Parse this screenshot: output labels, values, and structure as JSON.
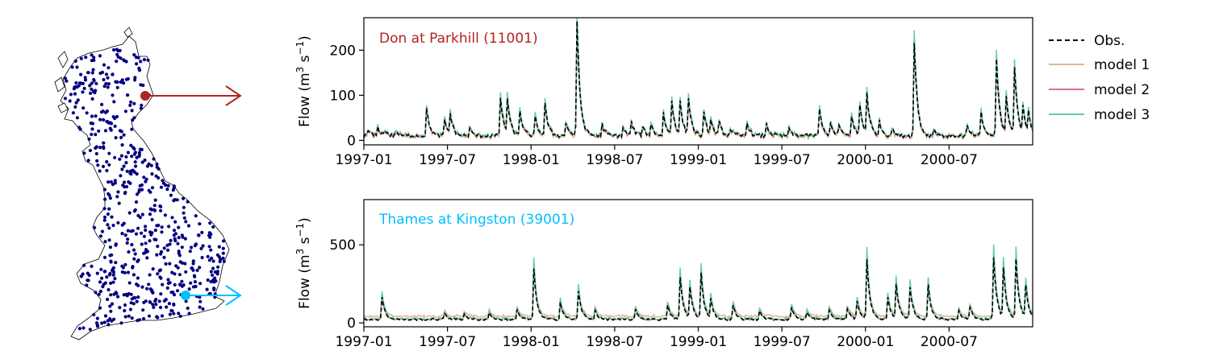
{
  "map": {
    "colors": {
      "land": "#ffffff",
      "outline": "#000000",
      "gauge": "#00007f",
      "don": "#b22222",
      "thames": "#00bfff"
    }
  },
  "chart_data": [
    {
      "type": "line",
      "annotation": "Don at Parkhill (11001)",
      "annotation_color": "#b22222",
      "ylabel_base": "Flow (m",
      "ylabel_exp1": "3",
      "ylabel_mid": " s",
      "ylabel_exp2": "−1",
      "ylabel_end": ")",
      "xlim": [
        0,
        48
      ],
      "ylim": [
        -10,
        272
      ],
      "xticks": [
        {
          "x": 0,
          "label": "1997-01"
        },
        {
          "x": 6,
          "label": "1997-07"
        },
        {
          "x": 12,
          "label": "1998-01"
        },
        {
          "x": 18,
          "label": "1998-07"
        },
        {
          "x": 24,
          "label": "1999-01"
        },
        {
          "x": 30,
          "label": "1999-07"
        },
        {
          "x": 36,
          "label": "2000-01"
        },
        {
          "x": 42,
          "label": "2000-07"
        }
      ],
      "yticks": [
        0,
        100,
        200
      ],
      "baseline": 10,
      "noise": 4,
      "model_factors": [
        1.0,
        1.02,
        1.12
      ],
      "model1_offset": -2,
      "peaks": [
        [
          0.3,
          12
        ],
        [
          1.0,
          18
        ],
        [
          1.5,
          12
        ],
        [
          2.3,
          10
        ],
        [
          4.5,
          60
        ],
        [
          5.8,
          35
        ],
        [
          6.2,
          45
        ],
        [
          7.6,
          15
        ],
        [
          9.8,
          85
        ],
        [
          10.3,
          75
        ],
        [
          11.2,
          55
        ],
        [
          12.3,
          40
        ],
        [
          13.0,
          70
        ],
        [
          14.5,
          30
        ],
        [
          15.3,
          250
        ],
        [
          17.1,
          25
        ],
        [
          18.6,
          18
        ],
        [
          19.2,
          30
        ],
        [
          20.0,
          20
        ],
        [
          20.6,
          25
        ],
        [
          21.5,
          50
        ],
        [
          22.1,
          75
        ],
        [
          22.7,
          70
        ],
        [
          23.3,
          80
        ],
        [
          24.4,
          50
        ],
        [
          24.9,
          30
        ],
        [
          25.5,
          28
        ],
        [
          26.3,
          15
        ],
        [
          27.5,
          30
        ],
        [
          28.9,
          25
        ],
        [
          30.5,
          15
        ],
        [
          32.7,
          60
        ],
        [
          33.5,
          25
        ],
        [
          34.1,
          20
        ],
        [
          35.0,
          45
        ],
        [
          35.6,
          65
        ],
        [
          36.1,
          90
        ],
        [
          37.0,
          30
        ],
        [
          37.9,
          15
        ],
        [
          39.5,
          210
        ],
        [
          40.9,
          15
        ],
        [
          43.3,
          20
        ],
        [
          44.3,
          50
        ],
        [
          45.4,
          170
        ],
        [
          46.1,
          80
        ],
        [
          46.7,
          150
        ],
        [
          47.3,
          55
        ],
        [
          47.7,
          45
        ]
      ],
      "series": [
        {
          "name": "Obs.",
          "color": "#000000",
          "dash": "5,3"
        },
        {
          "name": "model 1",
          "color": "#deb887",
          "dash": ""
        },
        {
          "name": "model 2",
          "color": "#db7093",
          "dash": ""
        },
        {
          "name": "model 3",
          "color": "#66cdaa",
          "dash": ""
        }
      ],
      "legend_position": "right"
    },
    {
      "type": "line",
      "annotation": "Thames at Kingston (39001)",
      "annotation_color": "#00bfff",
      "ylabel_base": "Flow (m",
      "ylabel_exp1": "3",
      "ylabel_mid": " s",
      "ylabel_exp2": "−1",
      "ylabel_end": ")",
      "xlim": [
        0,
        48
      ],
      "ylim": [
        -25,
        790
      ],
      "xticks": [
        {
          "x": 0,
          "label": "1997-01"
        },
        {
          "x": 6,
          "label": "1997-07"
        },
        {
          "x": 12,
          "label": "1998-01"
        },
        {
          "x": 18,
          "label": "1998-07"
        },
        {
          "x": 24,
          "label": "1999-01"
        },
        {
          "x": 30,
          "label": "1999-07"
        },
        {
          "x": 36,
          "label": "2000-01"
        },
        {
          "x": 42,
          "label": "2000-07"
        }
      ],
      "yticks": [
        0,
        500
      ],
      "baseline": 22,
      "noise": 6,
      "model_factors": [
        1.0,
        1.05,
        1.2
      ],
      "model1_offset": 20,
      "peaks": [
        [
          1.3,
          140
        ],
        [
          5.8,
          40
        ],
        [
          7.2,
          35
        ],
        [
          9.0,
          45
        ],
        [
          11.0,
          60
        ],
        [
          12.2,
          320
        ],
        [
          14.1,
          110
        ],
        [
          15.4,
          180
        ],
        [
          16.6,
          55
        ],
        [
          19.5,
          60
        ],
        [
          21.8,
          90
        ],
        [
          22.7,
          270
        ],
        [
          23.4,
          200
        ],
        [
          24.2,
          290
        ],
        [
          24.9,
          120
        ],
        [
          26.5,
          90
        ],
        [
          28.4,
          50
        ],
        [
          30.7,
          80
        ],
        [
          31.8,
          45
        ],
        [
          33.4,
          60
        ],
        [
          34.7,
          70
        ],
        [
          35.4,
          120
        ],
        [
          36.1,
          380
        ],
        [
          37.6,
          140
        ],
        [
          38.2,
          220
        ],
        [
          39.2,
          200
        ],
        [
          40.5,
          220
        ],
        [
          42.7,
          60
        ],
        [
          43.5,
          80
        ],
        [
          45.2,
          400
        ],
        [
          45.9,
          320
        ],
        [
          46.8,
          380
        ],
        [
          47.5,
          200
        ]
      ],
      "series": [
        {
          "name": "Obs.",
          "color": "#000000",
          "dash": "5,3"
        },
        {
          "name": "model 1",
          "color": "#deb887",
          "dash": ""
        },
        {
          "name": "model 2",
          "color": "#db7093",
          "dash": ""
        },
        {
          "name": "model 3",
          "color": "#66cdaa",
          "dash": ""
        }
      ]
    }
  ]
}
